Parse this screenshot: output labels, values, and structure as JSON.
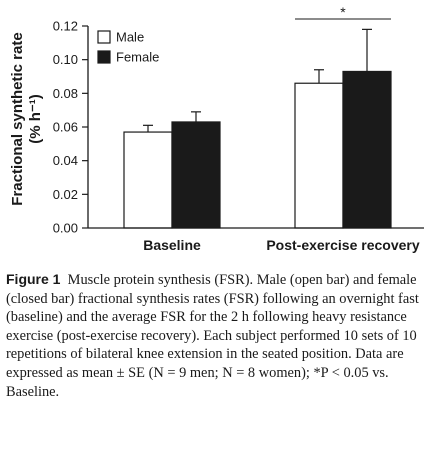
{
  "chart_data": {
    "type": "bar",
    "categories": [
      "Baseline",
      "Post-exercise recovery"
    ],
    "series": [
      {
        "name": "Male",
        "values": [
          0.057,
          0.086
        ],
        "errors": [
          0.004,
          0.008
        ],
        "color": "#ffffff"
      },
      {
        "name": "Female",
        "values": [
          0.063,
          0.093
        ],
        "errors": [
          0.006,
          0.025
        ],
        "color": "#1a1a1a"
      }
    ],
    "ylabel_line1": "Fractional synthetic rate",
    "ylabel_line2": "(% h⁻¹)",
    "ylim": [
      0,
      0.12
    ],
    "yticks": [
      "0.00",
      "0.02",
      "0.04",
      "0.06",
      "0.08",
      "0.10",
      "0.12"
    ],
    "legend_position": "top-left",
    "grid": false,
    "annotation": "*"
  },
  "caption": {
    "label": "Figure 1",
    "text": "Muscle protein synthesis (FSR). Male (open bar) and female (closed bar) fractional synthesis rates (FSR) following an overnight fast (baseline) and the average FSR for the 2 h following heavy resistance exercise (post-exercise recovery). Each subject performed 10 sets of 10 repetitions of bilateral knee extension in the seated position. Data are expressed as mean ± SE (N = 9 men; N = 8 women); *P < 0.05 vs. Baseline."
  }
}
